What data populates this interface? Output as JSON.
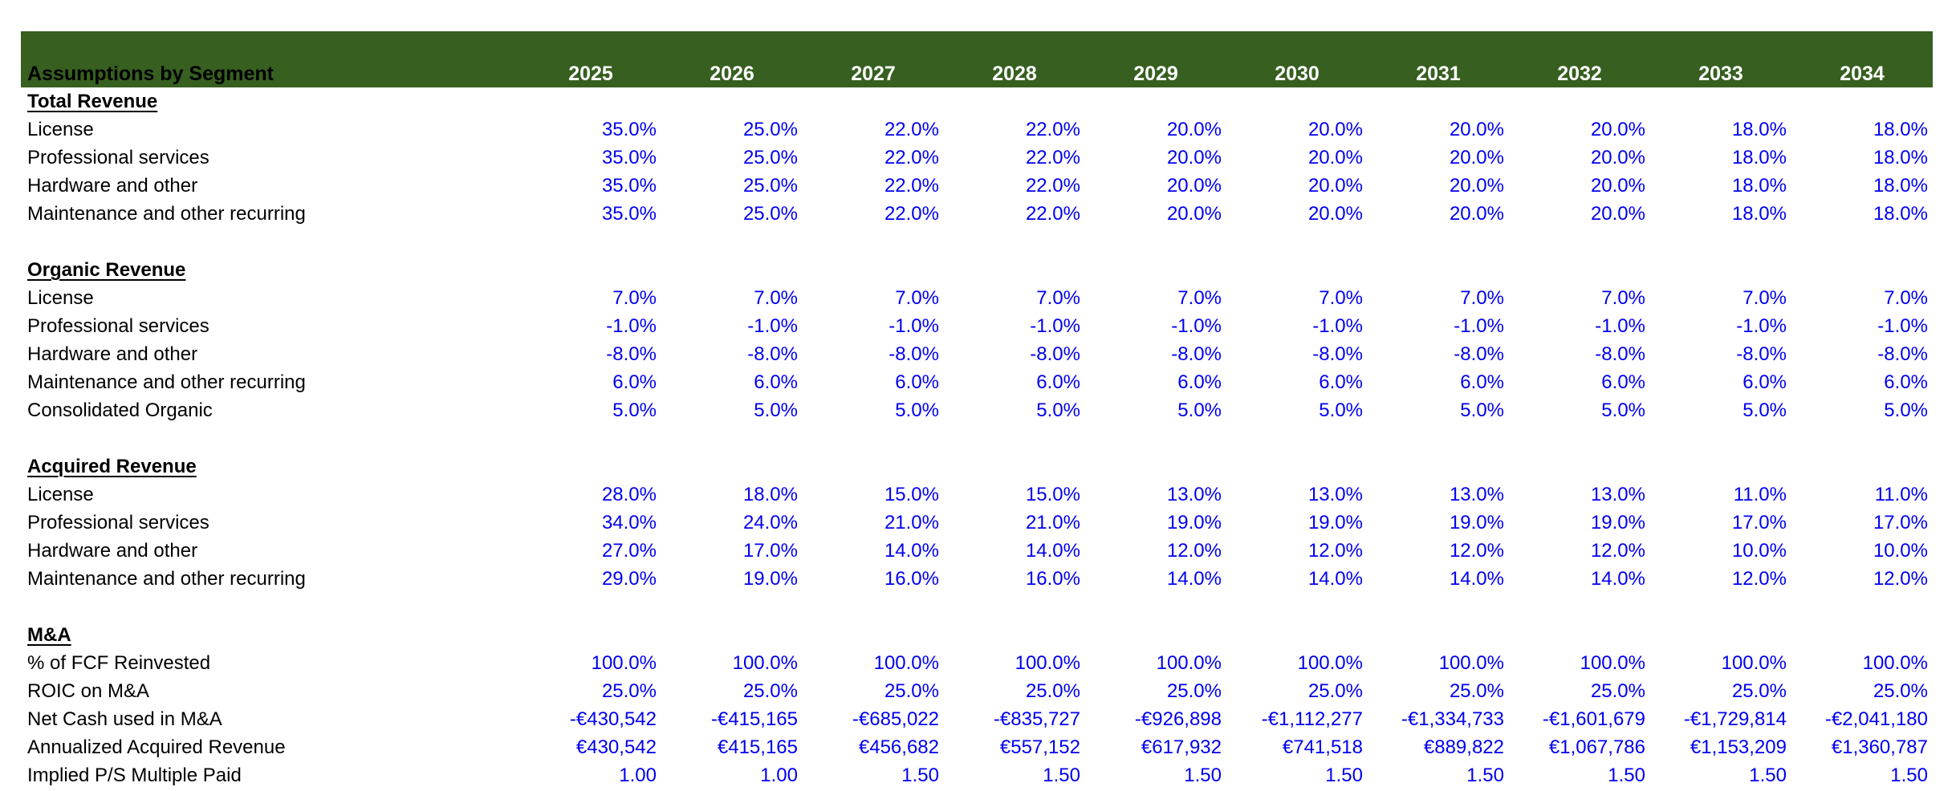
{
  "header": {
    "label": "Assumptions by Segment",
    "years": [
      "2025",
      "2026",
      "2027",
      "2028",
      "2029",
      "2030",
      "2031",
      "2032",
      "2033",
      "2034"
    ]
  },
  "sections": [
    {
      "title": "Total Revenue",
      "rows": [
        {
          "label": "License",
          "values": [
            "35.0%",
            "25.0%",
            "22.0%",
            "22.0%",
            "20.0%",
            "20.0%",
            "20.0%",
            "20.0%",
            "18.0%",
            "18.0%"
          ]
        },
        {
          "label": "Professional services",
          "values": [
            "35.0%",
            "25.0%",
            "22.0%",
            "22.0%",
            "20.0%",
            "20.0%",
            "20.0%",
            "20.0%",
            "18.0%",
            "18.0%"
          ]
        },
        {
          "label": "Hardware and other",
          "values": [
            "35.0%",
            "25.0%",
            "22.0%",
            "22.0%",
            "20.0%",
            "20.0%",
            "20.0%",
            "20.0%",
            "18.0%",
            "18.0%"
          ]
        },
        {
          "label": "Maintenance and other recurring",
          "values": [
            "35.0%",
            "25.0%",
            "22.0%",
            "22.0%",
            "20.0%",
            "20.0%",
            "20.0%",
            "20.0%",
            "18.0%",
            "18.0%"
          ]
        }
      ]
    },
    {
      "title": "Organic Revenue",
      "rows": [
        {
          "label": "License",
          "values": [
            "7.0%",
            "7.0%",
            "7.0%",
            "7.0%",
            "7.0%",
            "7.0%",
            "7.0%",
            "7.0%",
            "7.0%",
            "7.0%"
          ]
        },
        {
          "label": "Professional services",
          "values": [
            "-1.0%",
            "-1.0%",
            "-1.0%",
            "-1.0%",
            "-1.0%",
            "-1.0%",
            "-1.0%",
            "-1.0%",
            "-1.0%",
            "-1.0%"
          ]
        },
        {
          "label": "Hardware and other",
          "values": [
            "-8.0%",
            "-8.0%",
            "-8.0%",
            "-8.0%",
            "-8.0%",
            "-8.0%",
            "-8.0%",
            "-8.0%",
            "-8.0%",
            "-8.0%"
          ]
        },
        {
          "label": "Maintenance and other recurring",
          "values": [
            "6.0%",
            "6.0%",
            "6.0%",
            "6.0%",
            "6.0%",
            "6.0%",
            "6.0%",
            "6.0%",
            "6.0%",
            "6.0%"
          ]
        },
        {
          "label": "Consolidated Organic",
          "values": [
            "5.0%",
            "5.0%",
            "5.0%",
            "5.0%",
            "5.0%",
            "5.0%",
            "5.0%",
            "5.0%",
            "5.0%",
            "5.0%"
          ]
        }
      ]
    },
    {
      "title": "Acquired Revenue",
      "rows": [
        {
          "label": "License",
          "values": [
            "28.0%",
            "18.0%",
            "15.0%",
            "15.0%",
            "13.0%",
            "13.0%",
            "13.0%",
            "13.0%",
            "11.0%",
            "11.0%"
          ]
        },
        {
          "label": "Professional services",
          "values": [
            "34.0%",
            "24.0%",
            "21.0%",
            "21.0%",
            "19.0%",
            "19.0%",
            "19.0%",
            "19.0%",
            "17.0%",
            "17.0%"
          ]
        },
        {
          "label": "Hardware and other",
          "values": [
            "27.0%",
            "17.0%",
            "14.0%",
            "14.0%",
            "12.0%",
            "12.0%",
            "12.0%",
            "12.0%",
            "10.0%",
            "10.0%"
          ]
        },
        {
          "label": "Maintenance and other recurring",
          "values": [
            "29.0%",
            "19.0%",
            "16.0%",
            "16.0%",
            "14.0%",
            "14.0%",
            "14.0%",
            "14.0%",
            "12.0%",
            "12.0%"
          ]
        }
      ]
    },
    {
      "title": "M&A",
      "rows": [
        {
          "label": "% of FCF Reinvested",
          "values": [
            "100.0%",
            "100.0%",
            "100.0%",
            "100.0%",
            "100.0%",
            "100.0%",
            "100.0%",
            "100.0%",
            "100.0%",
            "100.0%"
          ]
        },
        {
          "label": "ROIC on M&A",
          "values": [
            "25.0%",
            "25.0%",
            "25.0%",
            "25.0%",
            "25.0%",
            "25.0%",
            "25.0%",
            "25.0%",
            "25.0%",
            "25.0%"
          ]
        },
        {
          "label": "Net Cash used in M&A",
          "values": [
            "-€430,542",
            "-€415,165",
            "-€685,022",
            "-€835,727",
            "-€926,898",
            "-€1,112,277",
            "-€1,334,733",
            "-€1,601,679",
            "-€1,729,814",
            "-€2,041,180"
          ]
        },
        {
          "label": "Annualized Acquired Revenue",
          "values": [
            "€430,542",
            "€415,165",
            "€456,682",
            "€557,152",
            "€617,932",
            "€741,518",
            "€889,822",
            "€1,067,786",
            "€1,153,209",
            "€1,360,787"
          ]
        },
        {
          "label": "Implied P/S Multiple Paid",
          "values": [
            "1.00",
            "1.00",
            "1.50",
            "1.50",
            "1.50",
            "1.50",
            "1.50",
            "1.50",
            "1.50",
            "1.50"
          ]
        }
      ]
    }
  ],
  "colors": {
    "header_bg": "#375F20",
    "header_text": "#FFFFFF",
    "label_text": "#000000",
    "value_text": "#0000F0"
  }
}
